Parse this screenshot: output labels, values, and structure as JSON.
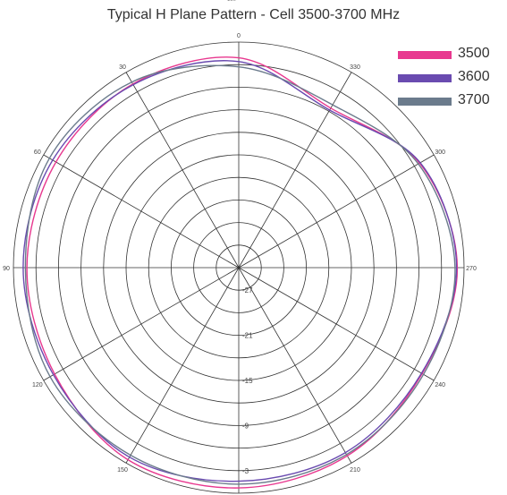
{
  "chart_data": {
    "type": "polar-line",
    "title": "Typical H Plane Pattern - Cell 3500-3700 MHz",
    "top_note": "180",
    "angle_tick_labels": [
      "0",
      "30",
      "60",
      "90",
      "120",
      "150",
      "180",
      "210",
      "240",
      "270",
      "300",
      "330"
    ],
    "bottom_label": "180",
    "radial_tick_labels": [
      "-27",
      "-21",
      "-15",
      "-9",
      "-3"
    ],
    "radial_range": [
      -30,
      0
    ],
    "radial_ring_step": 3,
    "angle_direction": "counterclockwise",
    "grid": true,
    "legend_position": "top-right",
    "x": [
      0,
      30,
      60,
      90,
      120,
      150,
      180,
      210,
      240,
      270,
      300,
      330
    ],
    "series": [
      {
        "name": "3500",
        "color": "#e8388f",
        "values": [
          -2.1,
          -1.8,
          -1.9,
          -1.8,
          -1.7,
          -0.5,
          -0.7,
          -1.1,
          -1.8,
          -0.9,
          -2.2,
          -5.5
        ]
      },
      {
        "name": "3600",
        "color": "#6a4bb0",
        "values": [
          -2.6,
          -1.9,
          -1.4,
          -1.3,
          -1.5,
          -0.9,
          -1.6,
          -1.6,
          -1.9,
          -1.0,
          -2.1,
          -5.8
        ]
      },
      {
        "name": "3700",
        "color": "#6b7b8c",
        "values": [
          -3.3,
          -1.5,
          -0.9,
          -1.6,
          -1.0,
          -1.2,
          -1.2,
          -1.3,
          -1.6,
          -1.2,
          -2.4,
          -5.0
        ]
      }
    ]
  }
}
